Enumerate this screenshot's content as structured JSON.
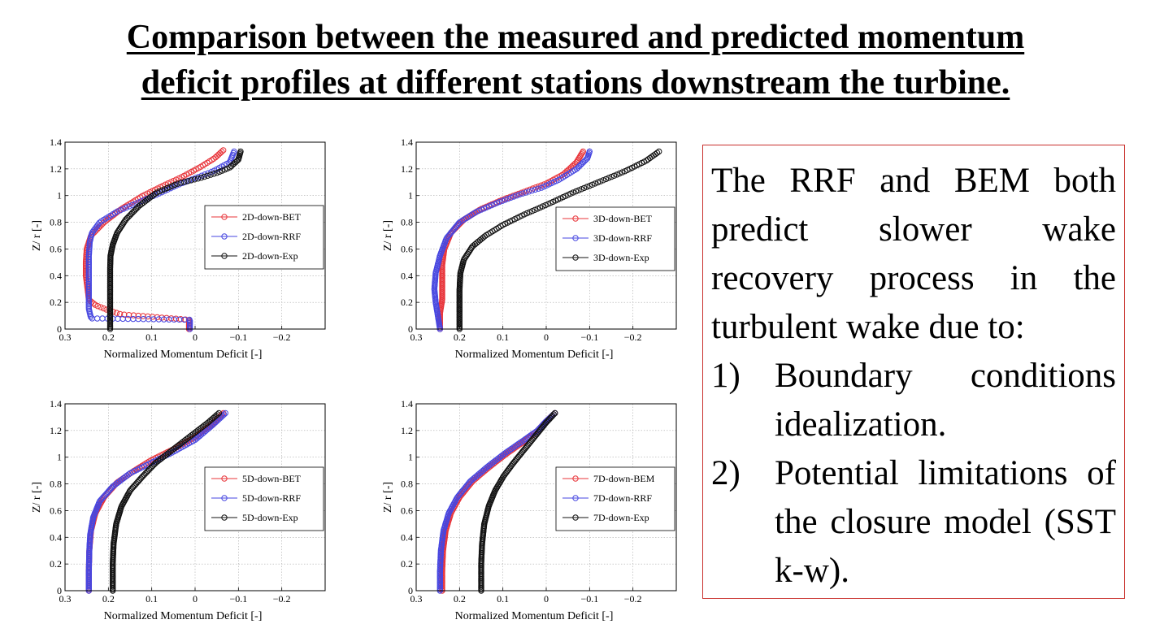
{
  "title": {
    "line1": "Comparison between the measured and predicted momentum",
    "line2": "deficit profiles at different stations downstream the turbine."
  },
  "note": {
    "intro": "The RRF and BEM both predict slower wake recovery process in the turbulent wake due to:",
    "items": [
      {
        "num": "1)",
        "text": "Boundary conditions idealization."
      },
      {
        "num": "2)",
        "text": "Potential limitations of the closure model (SST k-w)."
      }
    ]
  },
  "colors": {
    "red": "#e8343a",
    "blue": "#4646e0",
    "black": "#111111",
    "frame": "#c9302c"
  },
  "chart_data": [
    {
      "type": "scatter",
      "xlabel": "Normalized Momentum Deficit [-]",
      "ylabel": "Z/ r [-]",
      "xlim": [
        0.3,
        -0.3
      ],
      "ylim": [
        0,
        1.4
      ],
      "x_inverted": true,
      "grid": true,
      "legend_position": "center-right",
      "xticks": [
        "0.3",
        "0.2",
        "0.1",
        "0",
        "−0.1",
        "−0.2"
      ],
      "yticks": [
        "0",
        "0.2",
        "0.4",
        "0.6",
        "0.8",
        "1",
        "1.2",
        "1.4"
      ],
      "series": [
        {
          "name": "2D-down-BET",
          "color": "red",
          "x": [
            0.014,
            0.014,
            0.17,
            0.2,
            0.23,
            0.245,
            0.248,
            0.252,
            0.252,
            0.25,
            0.24,
            0.21,
            0.17,
            0.12,
            0.07,
            0.03,
            -0.01,
            -0.045,
            -0.065
          ],
          "y": [
            0.0,
            0.07,
            0.11,
            0.14,
            0.18,
            0.22,
            0.3,
            0.4,
            0.5,
            0.6,
            0.7,
            0.8,
            0.9,
            1.0,
            1.08,
            1.14,
            1.21,
            1.28,
            1.34
          ]
        },
        {
          "name": "2D-down-RRF",
          "color": "blue",
          "x": [
            0.012,
            0.012,
            0.24,
            0.245,
            0.245,
            0.245,
            0.245,
            0.245,
            0.243,
            0.238,
            0.22,
            0.18,
            0.13,
            0.08,
            0.04,
            0.0,
            -0.04,
            -0.08,
            -0.09
          ],
          "y": [
            0.0,
            0.07,
            0.08,
            0.15,
            0.25,
            0.35,
            0.45,
            0.55,
            0.65,
            0.72,
            0.8,
            0.88,
            0.95,
            1.02,
            1.08,
            1.13,
            1.18,
            1.25,
            1.33
          ]
        },
        {
          "name": "2D-down-Exp",
          "color": "black",
          "x": [
            0.196,
            0.196,
            0.196,
            0.196,
            0.195,
            0.19,
            0.18,
            0.16,
            0.13,
            0.09,
            0.04,
            -0.01,
            -0.05,
            -0.08,
            -0.1,
            -0.105
          ],
          "y": [
            0.0,
            0.15,
            0.3,
            0.45,
            0.55,
            0.63,
            0.72,
            0.82,
            0.92,
            1.02,
            1.09,
            1.13,
            1.17,
            1.21,
            1.27,
            1.33
          ]
        }
      ]
    },
    {
      "type": "scatter",
      "xlabel": "Normalized Momentum Deficit [-]",
      "ylabel": "Z/ r [-]",
      "xlim": [
        0.3,
        -0.3
      ],
      "ylim": [
        0,
        1.4
      ],
      "x_inverted": true,
      "grid": true,
      "legend_position": "top-right",
      "xticks": [
        "0.3",
        "0.2",
        "0.1",
        "0",
        "−0.1",
        "−0.2"
      ],
      "yticks": [
        "0",
        "0.2",
        "0.4",
        "0.6",
        "0.8",
        "1",
        "1.2",
        "1.4"
      ],
      "series": [
        {
          "name": "3D-down-BET",
          "color": "red",
          "x": [
            0.245,
            0.245,
            0.24,
            0.24,
            0.24,
            0.235,
            0.22,
            0.19,
            0.15,
            0.1,
            0.05,
            0.0,
            -0.04,
            -0.07,
            -0.085
          ],
          "y": [
            0.0,
            0.12,
            0.22,
            0.35,
            0.48,
            0.6,
            0.72,
            0.82,
            0.9,
            0.97,
            1.03,
            1.09,
            1.16,
            1.25,
            1.33
          ]
        },
        {
          "name": "3D-down-RRF",
          "color": "blue",
          "x": [
            0.245,
            0.25,
            0.255,
            0.258,
            0.255,
            0.245,
            0.23,
            0.2,
            0.16,
            0.11,
            0.06,
            0.01,
            -0.03,
            -0.07,
            -0.095,
            -0.1
          ],
          "y": [
            0.0,
            0.1,
            0.2,
            0.3,
            0.42,
            0.55,
            0.68,
            0.8,
            0.88,
            0.95,
            1.01,
            1.06,
            1.12,
            1.2,
            1.28,
            1.33
          ]
        },
        {
          "name": "3D-down-Exp",
          "color": "black",
          "x": [
            0.2,
            0.2,
            0.2,
            0.198,
            0.19,
            0.17,
            0.14,
            0.1,
            0.05,
            0.0,
            -0.06,
            -0.12,
            -0.18,
            -0.23,
            -0.26
          ],
          "y": [
            0.0,
            0.15,
            0.3,
            0.42,
            0.52,
            0.62,
            0.7,
            0.78,
            0.86,
            0.93,
            1.02,
            1.1,
            1.18,
            1.26,
            1.33
          ]
        }
      ]
    },
    {
      "type": "scatter",
      "xlabel": "Normalized Momentum Deficit [-]",
      "ylabel": "Z/ r [-]",
      "xlim": [
        0.3,
        -0.3
      ],
      "ylim": [
        0,
        1.4
      ],
      "x_inverted": true,
      "grid": true,
      "legend_position": "center-right",
      "xticks": [
        "0.3",
        "0.2",
        "0.1",
        "0",
        "−0.1",
        "−0.2"
      ],
      "yticks": [
        "0",
        "0.2",
        "0.4",
        "0.6",
        "0.8",
        "1",
        "1.2",
        "1.4"
      ],
      "series": [
        {
          "name": "5D-down-BET",
          "color": "red",
          "x": [
            0.245,
            0.245,
            0.244,
            0.24,
            0.23,
            0.21,
            0.18,
            0.14,
            0.1,
            0.05,
            0.0,
            -0.04,
            -0.065
          ],
          "y": [
            0.0,
            0.15,
            0.3,
            0.45,
            0.58,
            0.7,
            0.81,
            0.9,
            0.98,
            1.06,
            1.15,
            1.25,
            1.33
          ]
        },
        {
          "name": "5D-down-RRF",
          "color": "blue",
          "x": [
            0.245,
            0.245,
            0.244,
            0.242,
            0.235,
            0.22,
            0.19,
            0.15,
            0.1,
            0.05,
            0.0,
            -0.04,
            -0.07
          ],
          "y": [
            0.0,
            0.15,
            0.3,
            0.42,
            0.55,
            0.67,
            0.78,
            0.88,
            0.96,
            1.04,
            1.13,
            1.24,
            1.33
          ]
        },
        {
          "name": "5D-down-Exp",
          "color": "black",
          "x": [
            0.19,
            0.19,
            0.188,
            0.182,
            0.17,
            0.15,
            0.12,
            0.09,
            0.05,
            0.01,
            -0.03,
            -0.055
          ],
          "y": [
            0.0,
            0.2,
            0.35,
            0.5,
            0.63,
            0.75,
            0.86,
            0.96,
            1.06,
            1.16,
            1.26,
            1.33
          ]
        }
      ]
    },
    {
      "type": "scatter",
      "xlabel": "Normalized Momentum Deficit [-]",
      "ylabel": "Z/ r [-]",
      "xlim": [
        0.3,
        -0.3
      ],
      "ylim": [
        0,
        1.4
      ],
      "x_inverted": true,
      "grid": true,
      "legend_position": "center-right",
      "xticks": [
        "0.3",
        "0.2",
        "0.1",
        "0",
        "−0.1",
        "−0.2"
      ],
      "yticks": [
        "0",
        "0.2",
        "0.4",
        "0.6",
        "0.8",
        "1",
        "1.2",
        "1.4"
      ],
      "series": [
        {
          "name": "7D-down-BEM",
          "color": "red",
          "x": [
            0.24,
            0.24,
            0.238,
            0.232,
            0.22,
            0.2,
            0.17,
            0.13,
            0.09,
            0.05,
            0.02,
            0.0,
            -0.02
          ],
          "y": [
            0.0,
            0.15,
            0.3,
            0.45,
            0.58,
            0.7,
            0.82,
            0.93,
            1.03,
            1.12,
            1.2,
            1.27,
            1.33
          ]
        },
        {
          "name": "7D-down-RRF",
          "color": "blue",
          "x": [
            0.245,
            0.245,
            0.243,
            0.237,
            0.225,
            0.205,
            0.175,
            0.135,
            0.095,
            0.055,
            0.02,
            0.0,
            -0.02
          ],
          "y": [
            0.0,
            0.15,
            0.3,
            0.45,
            0.58,
            0.7,
            0.82,
            0.93,
            1.03,
            1.12,
            1.2,
            1.27,
            1.33
          ]
        },
        {
          "name": "7D-down-Exp",
          "color": "black",
          "x": [
            0.15,
            0.15,
            0.148,
            0.143,
            0.133,
            0.118,
            0.098,
            0.075,
            0.05,
            0.025,
            0.0,
            -0.02
          ],
          "y": [
            0.0,
            0.2,
            0.35,
            0.5,
            0.63,
            0.75,
            0.86,
            0.96,
            1.06,
            1.16,
            1.26,
            1.33
          ]
        }
      ]
    }
  ]
}
